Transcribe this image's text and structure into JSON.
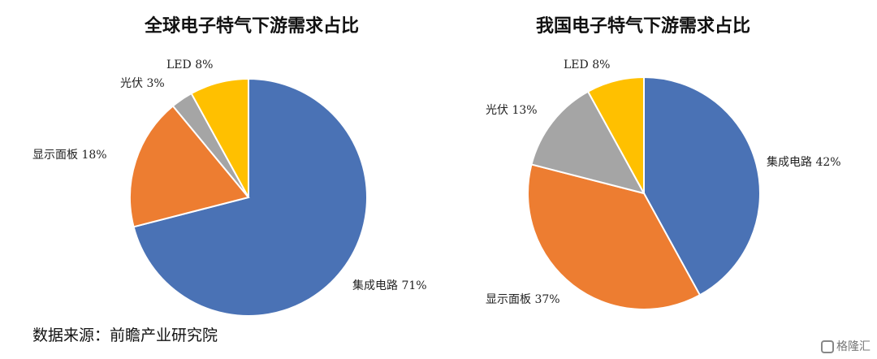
{
  "chart_data": [
    {
      "type": "pie",
      "title": "全球电子特气下游需求占比",
      "labels": [
        "集成电路",
        "显示面板",
        "光伏",
        "LED"
      ],
      "values": [
        71,
        18,
        3,
        8
      ],
      "unit": "%",
      "colors": [
        "#4a72b5",
        "#ed7d31",
        "#a5a5a5",
        "#ffc000"
      ]
    },
    {
      "type": "pie",
      "title": "我国电子特气下游需求占比",
      "labels": [
        "集成电路",
        "显示面板",
        "光伏",
        "LED"
      ],
      "values": [
        42,
        37,
        13,
        8
      ],
      "unit": "%",
      "colors": [
        "#4a72b5",
        "#ed7d31",
        "#a5a5a5",
        "#ffc000"
      ]
    }
  ],
  "source": "数据来源：前瞻产业研究院",
  "watermark": "格隆汇"
}
